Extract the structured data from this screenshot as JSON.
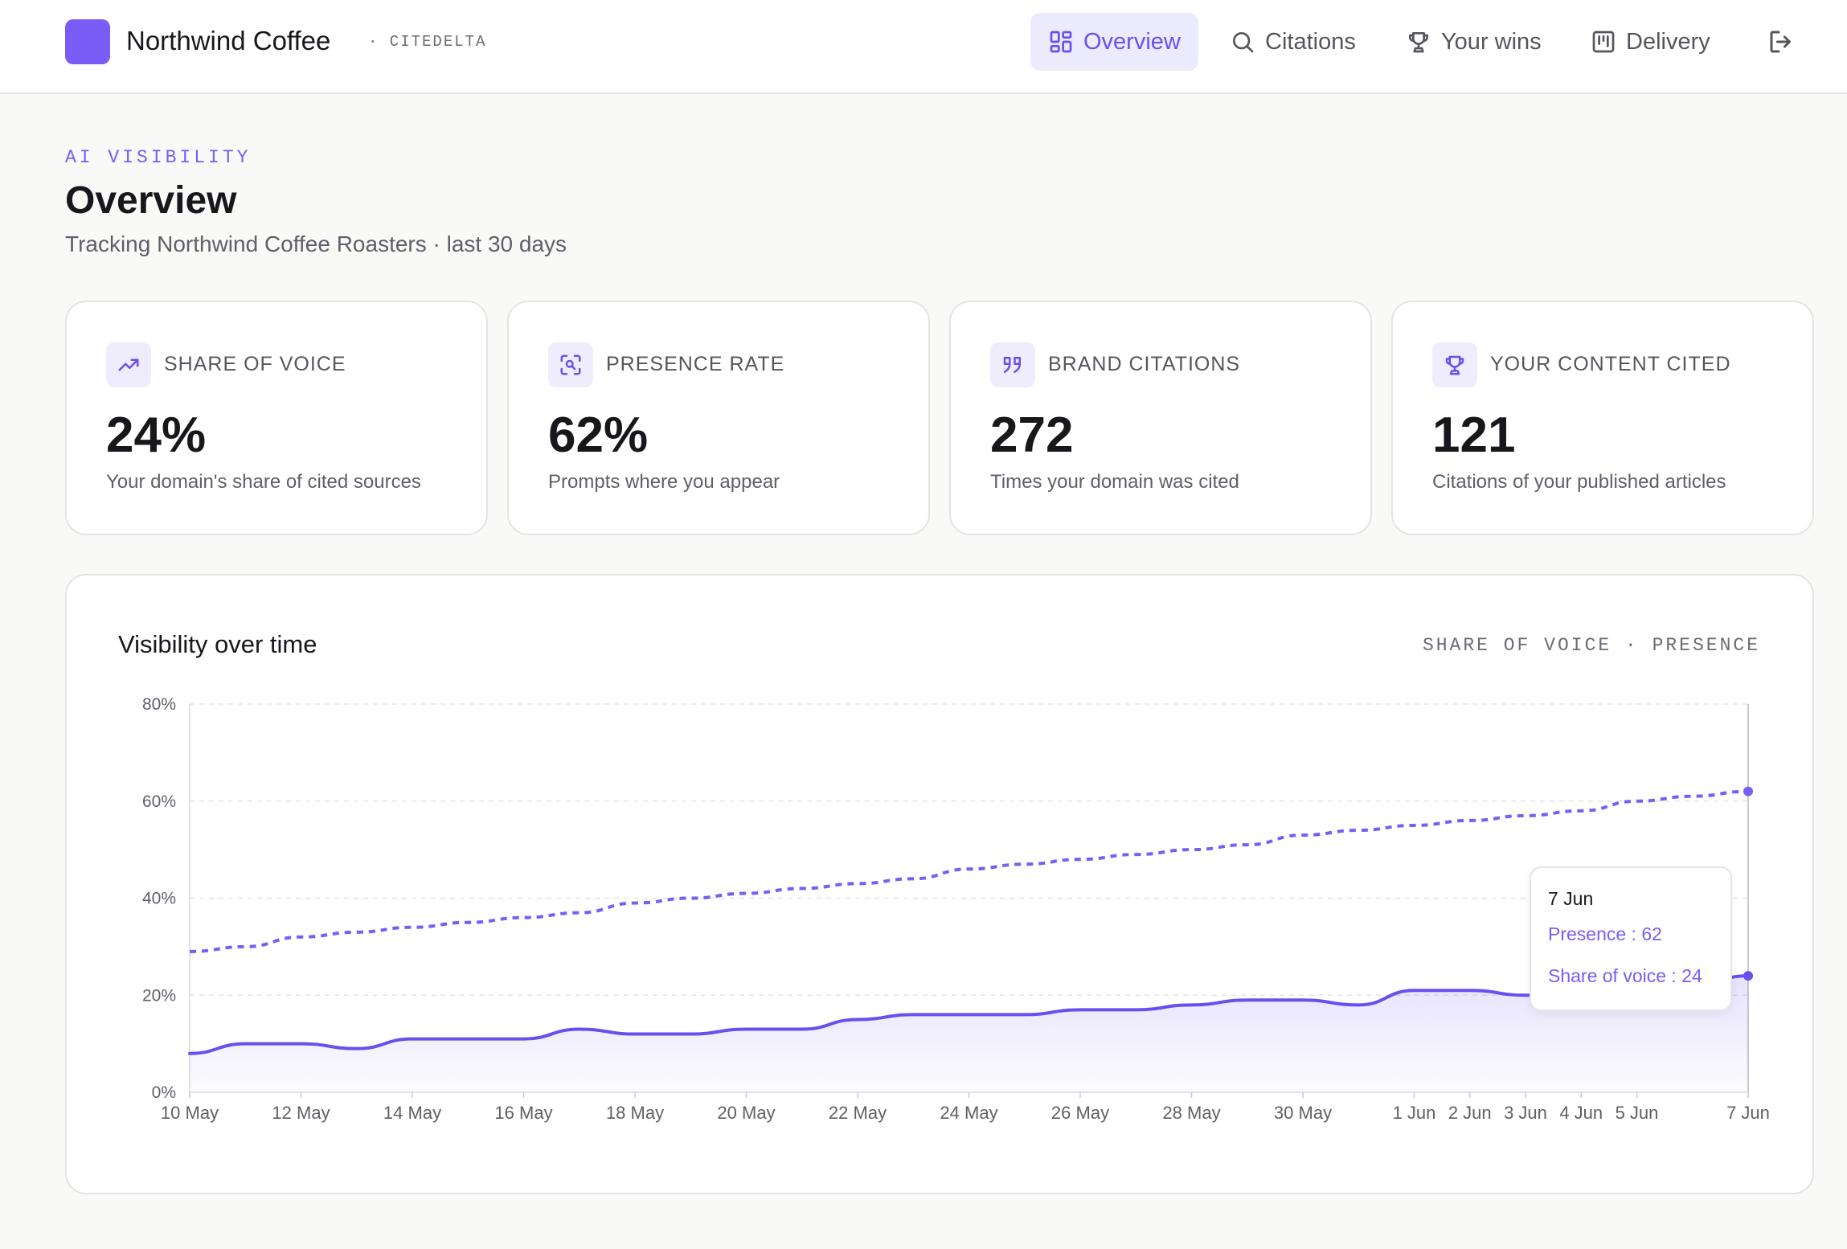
{
  "header": {
    "brand": "Northwind Coffee",
    "org": "· CITEDELTA",
    "nav": [
      {
        "label": "Overview",
        "icon": "dashboard-icon",
        "active": true
      },
      {
        "label": "Citations",
        "icon": "search-icon",
        "active": false
      },
      {
        "label": "Your wins",
        "icon": "trophy-icon",
        "active": false
      },
      {
        "label": "Delivery",
        "icon": "kanban-icon",
        "active": false
      }
    ],
    "logout_icon": "logout-icon"
  },
  "page": {
    "eyebrow": "AI VISIBILITY",
    "title": "Overview",
    "subtitle": "Tracking Northwind Coffee Roasters · last 30 days"
  },
  "kpis": [
    {
      "label": "SHARE OF VOICE",
      "value": "24%",
      "desc": "Your domain's share of cited sources",
      "icon": "trending-up-icon"
    },
    {
      "label": "PRESENCE RATE",
      "value": "62%",
      "desc": "Prompts where you appear",
      "icon": "scan-search-icon"
    },
    {
      "label": "BRAND CITATIONS",
      "value": "272",
      "desc": "Times your domain was cited",
      "icon": "quote-icon"
    },
    {
      "label": "YOUR CONTENT CITED",
      "value": "121",
      "desc": "Citations of your published articles",
      "icon": "trophy-icon"
    }
  ],
  "chart": {
    "title": "Visibility over time",
    "legend": "SHARE OF VOICE · PRESENCE"
  },
  "tooltip": {
    "date": "7 Jun",
    "presence": "Presence : 62",
    "share": "Share of voice : 24"
  },
  "colors": {
    "accent": "#7a5cf6",
    "accent_dark": "#6a4ff0",
    "accent_bg": "#ecebfd"
  },
  "chart_data": {
    "type": "line",
    "x": [
      "10 May",
      "11 May",
      "12 May",
      "13 May",
      "14 May",
      "15 May",
      "16 May",
      "17 May",
      "18 May",
      "19 May",
      "20 May",
      "21 May",
      "22 May",
      "23 May",
      "24 May",
      "25 May",
      "26 May",
      "27 May",
      "28 May",
      "29 May",
      "30 May",
      "31 May",
      "1 Jun",
      "2 Jun",
      "3 Jun",
      "4 Jun",
      "5 Jun",
      "6 Jun",
      "7 Jun"
    ],
    "x_tick_labels": [
      "10 May",
      "12 May",
      "14 May",
      "16 May",
      "18 May",
      "20 May",
      "22 May",
      "24 May",
      "26 May",
      "28 May",
      "30 May",
      "1 Jun",
      "2 Jun",
      "3 Jun",
      "4 Jun",
      "5 Jun",
      "7 Jun"
    ],
    "series": [
      {
        "name": "Presence",
        "style": "dashed",
        "values": [
          29,
          30,
          32,
          33,
          34,
          35,
          36,
          37,
          39,
          40,
          41,
          42,
          43,
          44,
          46,
          47,
          48,
          49,
          50,
          51,
          53,
          54,
          55,
          56,
          57,
          58,
          60,
          61,
          62
        ]
      },
      {
        "name": "Share of voice",
        "style": "solid-area",
        "values": [
          8,
          10,
          10,
          9,
          11,
          11,
          11,
          13,
          12,
          12,
          13,
          13,
          15,
          16,
          16,
          16,
          17,
          17,
          18,
          19,
          19,
          18,
          21,
          21,
          20,
          20,
          21,
          22,
          24
        ]
      }
    ],
    "ylim": [
      0,
      80
    ],
    "y_ticks": [
      "0%",
      "20%",
      "40%",
      "60%",
      "80%"
    ],
    "grid": true
  }
}
